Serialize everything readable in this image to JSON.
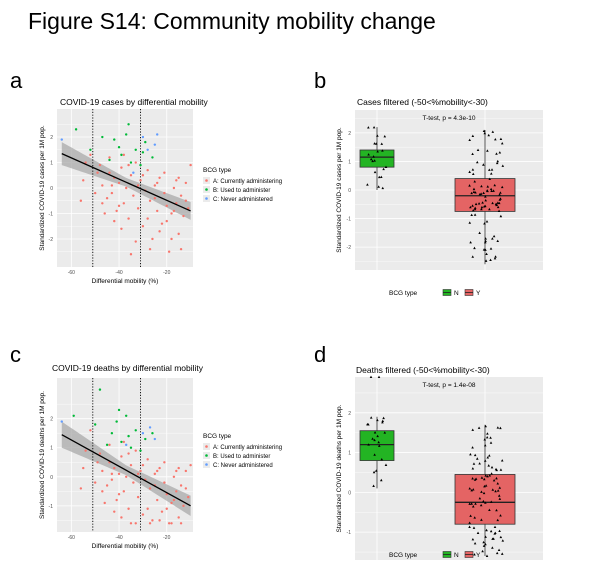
{
  "figure": {
    "title": "Figure  S14: Community mobility change"
  },
  "colors": {
    "panel_bg": "#ebebeb",
    "grid": "#ffffff",
    "series_a": "#f8766d",
    "series_b": "#00ba38",
    "series_c": "#619cff",
    "box_n": "#23b423",
    "box_y": "#e46464",
    "ribbon": "#a9a9a9",
    "fit_line": "#000000"
  },
  "legend_scatter": {
    "title": "BCG type",
    "items": [
      "A: Currently administering",
      "B: Used to administer",
      "C: Never administered"
    ]
  },
  "legend_box": {
    "title": "BCG type",
    "items": [
      "N",
      "Y"
    ]
  },
  "chart_data": [
    {
      "panel_letter": "a",
      "type": "scatter",
      "title": "COVID-19 cases by differential mobility",
      "xlabel": "Differential mobility (%)",
      "ylabel": "Standardized COVID-19 cases per 1M pop.",
      "xlim": [
        -66,
        -9
      ],
      "ylim": [
        -3.1,
        3.1
      ],
      "x_ticks": [
        -60,
        -40,
        -20
      ],
      "y_ticks": [
        -2,
        -1,
        0,
        1,
        2
      ],
      "vlines": [
        -51,
        -31
      ],
      "fit": {
        "x1": -64,
        "y1": 1.35,
        "x2": -10,
        "y2": -0.9
      },
      "ribbon": {
        "half_width_left": 0.45,
        "half_width_mid": 0.17,
        "half_width_right": 0.35,
        "x_mid": -37
      },
      "series": [
        {
          "name": "A: Currently administering",
          "points": [
            [
              -52,
              1.3
            ],
            [
              -48,
              0.9
            ],
            [
              -47,
              0.1
            ],
            [
              -45,
              -0.4
            ],
            [
              -44,
              0.6
            ],
            [
              -43,
              -0.2
            ],
            [
              -42,
              0.4
            ],
            [
              -41,
              -0.9
            ],
            [
              -40,
              0.2
            ],
            [
              -39,
              0.8
            ],
            [
              -38,
              -0.6
            ],
            [
              -37,
              0.0
            ],
            [
              -36,
              -1.2
            ],
            [
              -35,
              0.5
            ],
            [
              -34,
              -0.3
            ],
            [
              -33,
              1.0
            ],
            [
              -32,
              -0.8
            ],
            [
              -31,
              0.3
            ],
            [
              -30,
              -1.5
            ],
            [
              -29,
              -0.1
            ],
            [
              -28,
              0.7
            ],
            [
              -27,
              -0.5
            ],
            [
              -26,
              -2.0
            ],
            [
              -25,
              0.1
            ],
            [
              -24,
              -0.9
            ],
            [
              -23,
              0.4
            ],
            [
              -22,
              -1.4
            ],
            [
              -21,
              -0.2
            ],
            [
              -20,
              -0.7
            ],
            [
              -19,
              -2.5
            ],
            [
              -18,
              -1.0
            ],
            [
              -17,
              0.0
            ],
            [
              -16,
              -0.6
            ],
            [
              -15,
              -1.8
            ],
            [
              -14,
              -0.3
            ],
            [
              -13,
              -1.1
            ],
            [
              -12,
              0.2
            ],
            [
              -11,
              -0.8
            ],
            [
              -10,
              0.9
            ],
            [
              -55,
              0.3
            ],
            [
              -56,
              -0.5
            ],
            [
              -54,
              1.0
            ],
            [
              -50,
              -0.2
            ],
            [
              -49,
              0.6
            ],
            [
              -46,
              -1.0
            ],
            [
              -44,
              1.2
            ],
            [
              -39,
              -1.6
            ],
            [
              -36,
              0.9
            ],
            [
              -33,
              -2.1
            ],
            [
              -30,
              0.5
            ],
            [
              -28,
              -1.2
            ],
            [
              -25,
              -0.4
            ],
            [
              -23,
              -1.7
            ],
            [
              -21,
              0.6
            ],
            [
              -18,
              -2.0
            ],
            [
              -16,
              0.3
            ],
            [
              -14,
              -2.4
            ],
            [
              -12,
              -0.5
            ],
            [
              -35,
              -2.6
            ],
            [
              -40,
              -0.7
            ],
            [
              -43,
              0.1
            ],
            [
              -47,
              -0.6
            ],
            [
              -32,
              0.1
            ],
            [
              -27,
              -2.4
            ],
            [
              -24,
              0.2
            ],
            [
              -20,
              -1.3
            ],
            [
              -17,
              -0.9
            ],
            [
              -15,
              0.4
            ],
            [
              -38,
              1.3
            ],
            [
              -42,
              -1.3
            ]
          ]
        },
        {
          "name": "B: Used to administer",
          "points": [
            [
              -58,
              2.3
            ],
            [
              -47,
              2.0
            ],
            [
              -42,
              1.9
            ],
            [
              -39,
              1.3
            ],
            [
              -37,
              2.1
            ],
            [
              -35,
              1.0
            ],
            [
              -33,
              1.5
            ],
            [
              -31,
              0.9
            ],
            [
              -29,
              1.8
            ],
            [
              -44,
              1.1
            ],
            [
              -40,
              1.6
            ],
            [
              -26,
              1.2
            ],
            [
              -52,
              1.5
            ],
            [
              -36,
              2.5
            ],
            [
              -30,
              1.4
            ]
          ]
        },
        {
          "name": "C: Never administered",
          "points": [
            [
              -64,
              1.9
            ],
            [
              -28,
              1.5
            ],
            [
              -25,
              1.7
            ],
            [
              -30,
              2.0
            ],
            [
              -34,
              0.6
            ],
            [
              -24,
              2.1
            ]
          ]
        }
      ]
    },
    {
      "panel_letter": "b",
      "type": "box",
      "title": "Cases filtered (-50<%mobility<-30)",
      "annotation": "T-test, p = 4.3e-10",
      "xlabel": "",
      "ylabel": "Standardized COVID-19 cases per 1M pop.",
      "ylim": [
        -2.8,
        2.8
      ],
      "y_ticks": [
        -2,
        -1,
        0,
        1,
        2
      ],
      "legend_label": "BCG type",
      "groups": [
        {
          "name": "N",
          "q1": 0.8,
          "median": 1.15,
          "q3": 1.4,
          "whisker_low": 0.0,
          "whisker_high": 2.2,
          "outliers": []
        },
        {
          "name": "Y",
          "q1": -0.75,
          "median": -0.2,
          "q3": 0.4,
          "whisker_low": -2.6,
          "whisker_high": 2.1,
          "outliers": []
        }
      ]
    },
    {
      "panel_letter": "c",
      "type": "scatter",
      "title": "COVID-19 deaths by differential mobility",
      "xlabel": "Differential mobility (%)",
      "ylabel": "Standardized COVID-19 deaths per 1M pop.",
      "xlim": [
        -66,
        -9
      ],
      "ylim": [
        -1.9,
        3.4
      ],
      "x_ticks": [
        -60,
        -40,
        -20
      ],
      "y_ticks": [
        -1,
        0,
        1,
        2
      ],
      "vlines": [
        -51,
        -31
      ],
      "fit": {
        "x1": -64,
        "y1": 1.45,
        "x2": -10,
        "y2": -1.0
      },
      "ribbon": {
        "half_width_left": 0.45,
        "half_width_mid": 0.17,
        "half_width_right": 0.35,
        "x_mid": -37
      },
      "series": [
        {
          "name": "A: Currently administering",
          "points": [
            [
              -52,
              1.6
            ],
            [
              -48,
              0.8
            ],
            [
              -47,
              0.2
            ],
            [
              -45,
              -0.3
            ],
            [
              -44,
              0.5
            ],
            [
              -43,
              -0.1
            ],
            [
              -42,
              0.3
            ],
            [
              -41,
              -0.8
            ],
            [
              -40,
              0.1
            ],
            [
              -39,
              0.7
            ],
            [
              -38,
              -0.5
            ],
            [
              -37,
              0.0
            ],
            [
              -36,
              -1.1
            ],
            [
              -35,
              0.4
            ],
            [
              -34,
              -0.2
            ],
            [
              -33,
              0.9
            ],
            [
              -32,
              -0.7
            ],
            [
              -31,
              0.2
            ],
            [
              -30,
              -1.3
            ],
            [
              -29,
              -0.1
            ],
            [
              -28,
              0.6
            ],
            [
              -27,
              -0.4
            ],
            [
              -26,
              -1.5
            ],
            [
              -25,
              0.1
            ],
            [
              -24,
              -0.8
            ],
            [
              -23,
              0.3
            ],
            [
              -22,
              -1.2
            ],
            [
              -21,
              -0.2
            ],
            [
              -20,
              -0.6
            ],
            [
              -19,
              -1.6
            ],
            [
              -18,
              -0.9
            ],
            [
              -17,
              0.0
            ],
            [
              -16,
              -0.5
            ],
            [
              -15,
              -1.4
            ],
            [
              -14,
              -0.3
            ],
            [
              -13,
              -1.0
            ],
            [
              -12,
              0.2
            ],
            [
              -11,
              -0.7
            ],
            [
              -10,
              0.4
            ],
            [
              -55,
              0.3
            ],
            [
              -56,
              -0.4
            ],
            [
              -54,
              0.9
            ],
            [
              -50,
              -0.2
            ],
            [
              -49,
              0.5
            ],
            [
              -46,
              -0.9
            ],
            [
              -44,
              1.1
            ],
            [
              -39,
              -1.4
            ],
            [
              -36,
              0.8
            ],
            [
              -33,
              -1.6
            ],
            [
              -30,
              0.4
            ],
            [
              -28,
              -1.1
            ],
            [
              -25,
              -0.3
            ],
            [
              -23,
              -1.5
            ],
            [
              -21,
              0.5
            ],
            [
              -18,
              -1.6
            ],
            [
              -16,
              0.2
            ],
            [
              -14,
              -1.6
            ],
            [
              -12,
              -0.4
            ],
            [
              -35,
              -1.6
            ],
            [
              -40,
              -0.6
            ],
            [
              -43,
              0.1
            ],
            [
              -47,
              -0.5
            ],
            [
              -32,
              0.1
            ],
            [
              -27,
              -1.6
            ],
            [
              -24,
              0.2
            ],
            [
              -20,
              -1.1
            ],
            [
              -17,
              -0.8
            ],
            [
              -15,
              0.3
            ],
            [
              -38,
              1.2
            ],
            [
              -42,
              -1.2
            ]
          ]
        },
        {
          "name": "B: Used to administer",
          "points": [
            [
              -59,
              2.1
            ],
            [
              -50,
              1.8
            ],
            [
              -48,
              3.0
            ],
            [
              -43,
              1.5
            ],
            [
              -41,
              1.9
            ],
            [
              -39,
              1.2
            ],
            [
              -37,
              2.1
            ],
            [
              -35,
              1.0
            ],
            [
              -33,
              1.6
            ],
            [
              -31,
              0.9
            ],
            [
              -29,
              1.3
            ],
            [
              -45,
              1.1
            ],
            [
              -26,
              1.5
            ],
            [
              -36,
              1.4
            ],
            [
              -40,
              2.3
            ]
          ]
        },
        {
          "name": "C: Never administered",
          "points": [
            [
              -64,
              1.9
            ],
            [
              -27,
              1.7
            ],
            [
              -30,
              1.5
            ],
            [
              -37,
              1.1
            ],
            [
              -25,
              1.3
            ]
          ]
        }
      ]
    },
    {
      "panel_letter": "d",
      "type": "box",
      "title": "Deaths filtered (-50<%mobility<-30)",
      "annotation": "T-test, p = 1.4e-08",
      "xlabel": "",
      "ylabel": "Standardized COVID-19 deaths per 1M pop.",
      "ylim": [
        -1.7,
        2.9
      ],
      "y_ticks": [
        -1,
        0,
        1,
        2
      ],
      "legend_label": "BCG type",
      "groups": [
        {
          "name": "N",
          "q1": 0.8,
          "median": 1.2,
          "q3": 1.55,
          "whisker_low": 0.1,
          "whisker_high": 1.9,
          "outliers": [
            2.9,
            2.9
          ]
        },
        {
          "name": "Y",
          "q1": -0.8,
          "median": -0.25,
          "q3": 0.45,
          "whisker_low": -1.6,
          "whisker_high": 1.7,
          "outliers": []
        }
      ]
    }
  ]
}
